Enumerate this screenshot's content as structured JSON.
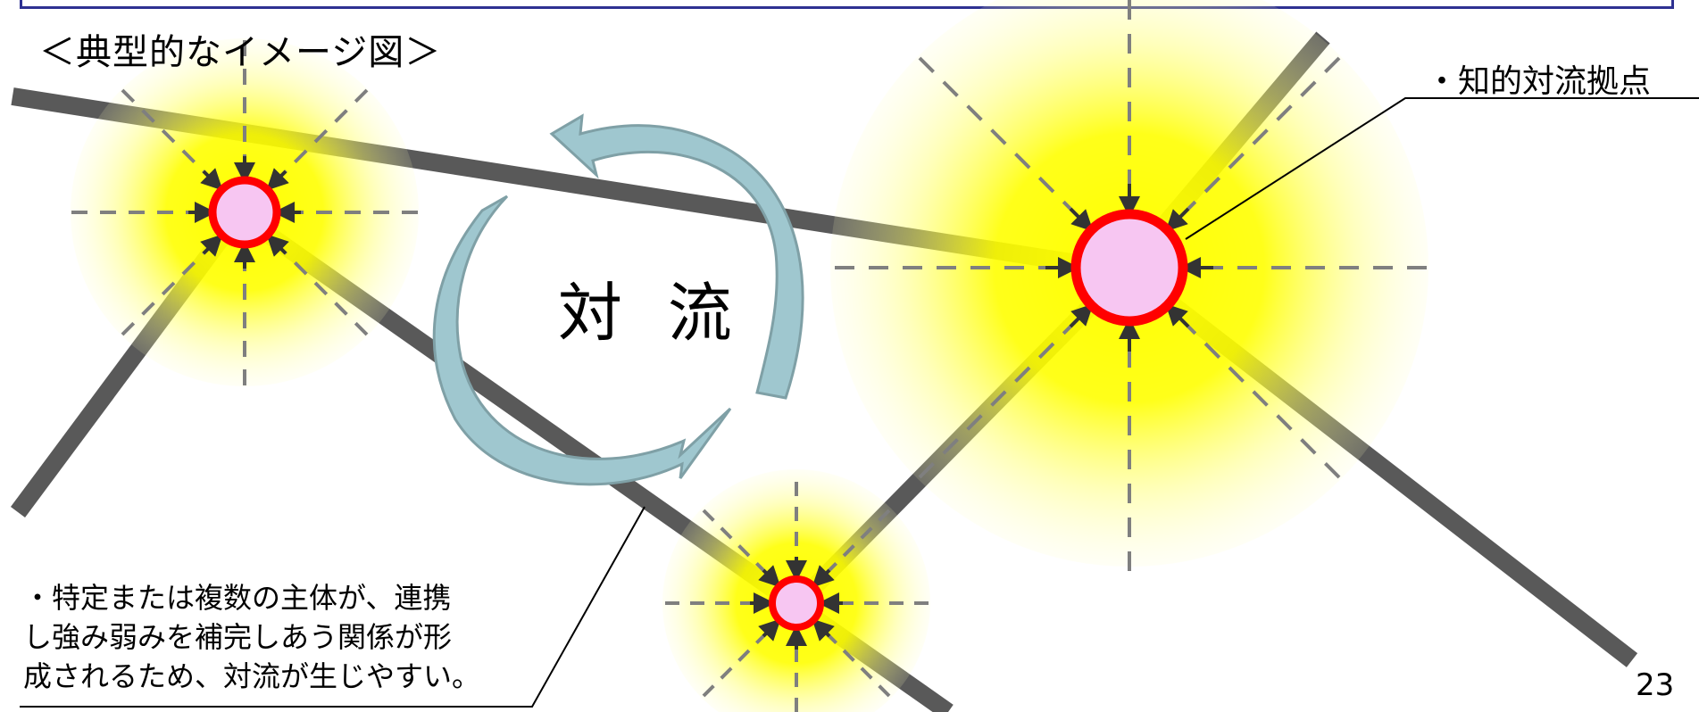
{
  "title": "＜典型的なイメージ図＞",
  "callouts": {
    "hub": "・知的対流拠点",
    "relationship": "・特定または複数の主体が、連携\n し強み弱みを補完しあう関係が形\n 成されるため、対流が生じやすい。"
  },
  "center_label": "対 流",
  "page_number": "23",
  "colors": {
    "frame": "#2e3192",
    "glow": "#ffff00",
    "node_fill": "#f7c6f2",
    "node_ring": "#ff0000",
    "road": "#595959",
    "arrow": "#9fc7cf",
    "arrow_stroke": "#7fa0a6"
  },
  "nodes": [
    {
      "name": "small-hub-left"
    },
    {
      "name": "large-hub-right"
    },
    {
      "name": "small-hub-bottom"
    }
  ]
}
